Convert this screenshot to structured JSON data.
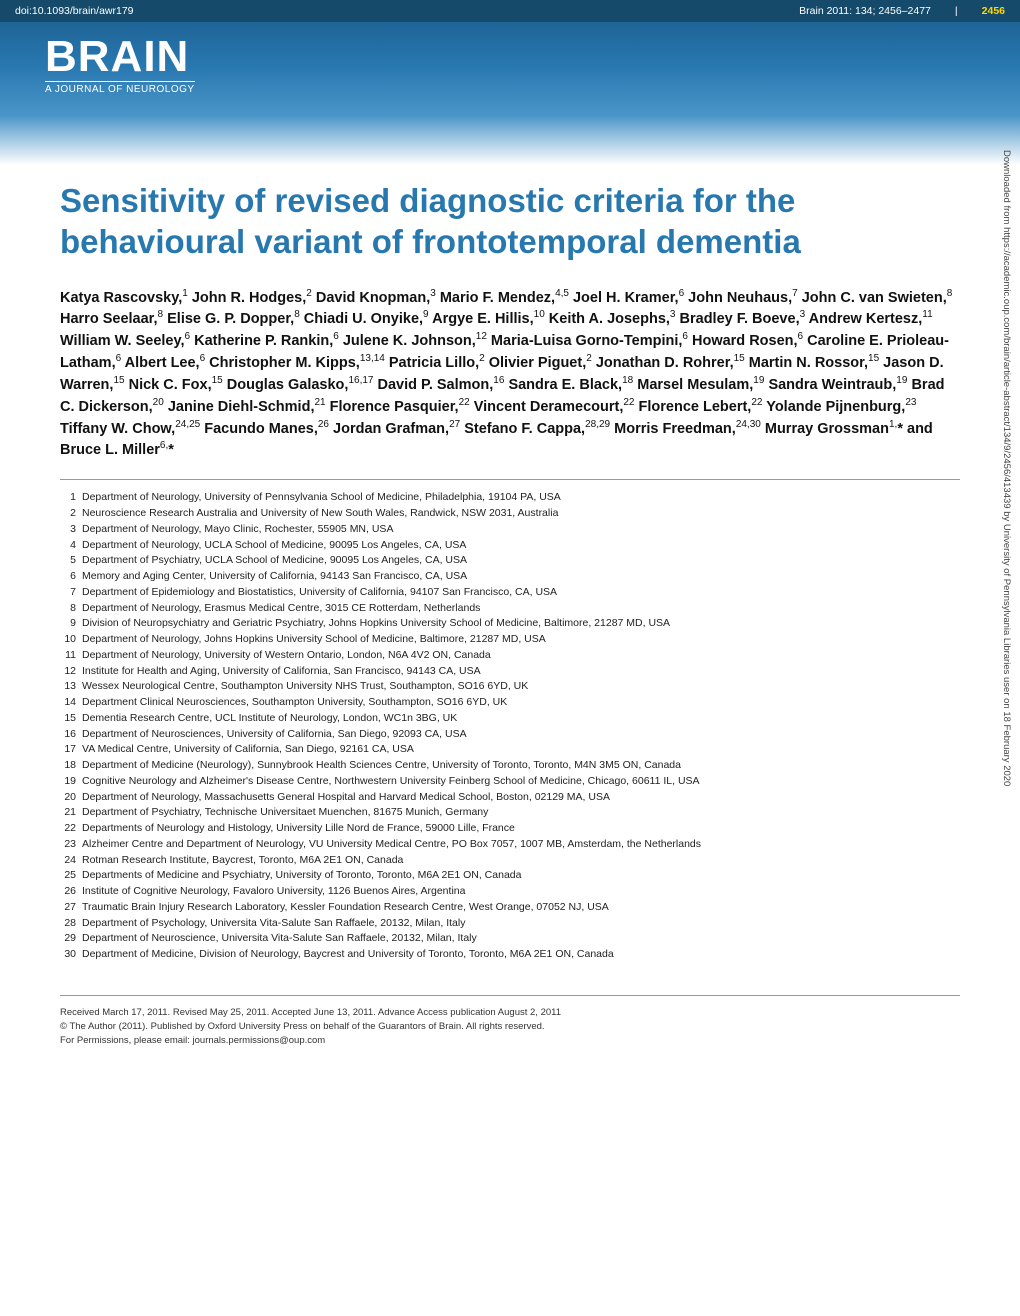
{
  "header": {
    "doi": "doi:10.1093/brain/awr179",
    "citation": "Brain 2011: 134; 2456–2477",
    "page_number": "2456",
    "journal_name": "BRAIN",
    "journal_subtitle": "A JOURNAL OF NEUROLOGY"
  },
  "title": "Sensitivity of revised diagnostic criteria for the behavioural variant of frontotemporal dementia",
  "authors_html": "Katya Rascovsky,<sup>1</sup> John R. Hodges,<sup>2</sup> David Knopman,<sup>3</sup> Mario F. Mendez,<sup>4,5</sup> Joel H. Kramer,<sup>6</sup> John Neuhaus,<sup>7</sup> John C. van Swieten,<sup>8</sup> Harro Seelaar,<sup>8</sup> Elise G. P. Dopper,<sup>8</sup> Chiadi U. Onyike,<sup>9</sup> Argye E. Hillis,<sup>10</sup> Keith A. Josephs,<sup>3</sup> Bradley F. Boeve,<sup>3</sup> Andrew Kertesz,<sup>11</sup> William W. Seeley,<sup>6</sup> Katherine P. Rankin,<sup>6</sup> Julene K. Johnson,<sup>12</sup> Maria-Luisa Gorno-Tempini,<sup>6</sup> Howard Rosen,<sup>6</sup> Caroline E. Prioleau-Latham,<sup>6</sup> Albert Lee,<sup>6</sup> Christopher M. Kipps,<sup>13,14</sup> Patricia Lillo,<sup>2</sup> Olivier Piguet,<sup>2</sup> Jonathan D. Rohrer,<sup>15</sup> Martin N. Rossor,<sup>15</sup> Jason D. Warren,<sup>15</sup> Nick C. Fox,<sup>15</sup> Douglas Galasko,<sup>16,17</sup> David P. Salmon,<sup>16</sup> Sandra E. Black,<sup>18</sup> Marsel Mesulam,<sup>19</sup> Sandra Weintraub,<sup>19</sup> Brad C. Dickerson,<sup>20</sup> Janine Diehl-Schmid,<sup>21</sup> Florence Pasquier,<sup>22</sup> Vincent Deramecourt,<sup>22</sup> Florence Lebert,<sup>22</sup> Yolande Pijnenburg,<sup>23</sup> Tiffany W. Chow,<sup>24,25</sup> Facundo Manes,<sup>26</sup> Jordan Grafman,<sup>27</sup> Stefano F. Cappa,<sup>28,29</sup> Morris Freedman,<sup>24,30</sup> Murray Grossman<sup>1,</sup>* and Bruce L. Miller<sup>6,</sup>*",
  "affiliations": [
    {
      "n": "1",
      "text": "Department of Neurology, University of Pennsylvania School of Medicine, Philadelphia, 19104 PA, USA"
    },
    {
      "n": "2",
      "text": "Neuroscience Research Australia and University of New South Wales, Randwick, NSW 2031, Australia"
    },
    {
      "n": "3",
      "text": "Department of Neurology, Mayo Clinic, Rochester, 55905 MN, USA"
    },
    {
      "n": "4",
      "text": "Department of Neurology, UCLA School of Medicine, 90095 Los Angeles, CA, USA"
    },
    {
      "n": "5",
      "text": "Department of Psychiatry, UCLA School of Medicine, 90095 Los Angeles, CA, USA"
    },
    {
      "n": "6",
      "text": "Memory and Aging Center, University of California, 94143 San Francisco, CA, USA"
    },
    {
      "n": "7",
      "text": "Department of Epidemiology and Biostatistics, University of California, 94107 San Francisco, CA, USA"
    },
    {
      "n": "8",
      "text": "Department of Neurology, Erasmus Medical Centre, 3015 CE Rotterdam, Netherlands"
    },
    {
      "n": "9",
      "text": "Division of Neuropsychiatry and Geriatric Psychiatry, Johns Hopkins University School of Medicine, Baltimore, 21287 MD, USA"
    },
    {
      "n": "10",
      "text": "Department of Neurology, Johns Hopkins University School of Medicine, Baltimore, 21287 MD, USA"
    },
    {
      "n": "11",
      "text": "Department of Neurology, University of Western Ontario, London, N6A 4V2 ON, Canada"
    },
    {
      "n": "12",
      "text": "Institute for Health and Aging, University of California, San Francisco, 94143 CA, USA"
    },
    {
      "n": "13",
      "text": "Wessex Neurological Centre, Southampton University NHS Trust, Southampton, SO16 6YD, UK"
    },
    {
      "n": "14",
      "text": "Department Clinical Neurosciences, Southampton University, Southampton, SO16 6YD, UK"
    },
    {
      "n": "15",
      "text": "Dementia Research Centre, UCL Institute of Neurology, London, WC1n 3BG, UK"
    },
    {
      "n": "16",
      "text": "Department of Neurosciences, University of California, San Diego, 92093 CA, USA"
    },
    {
      "n": "17",
      "text": "VA Medical Centre, University of California, San Diego, 92161 CA, USA"
    },
    {
      "n": "18",
      "text": "Department of Medicine (Neurology), Sunnybrook Health Sciences Centre, University of Toronto, Toronto, M4N 3M5 ON, Canada"
    },
    {
      "n": "19",
      "text": "Cognitive Neurology and Alzheimer's Disease Centre, Northwestern University Feinberg School of Medicine, Chicago, 60611 IL, USA"
    },
    {
      "n": "20",
      "text": "Department of Neurology, Massachusetts General Hospital and Harvard Medical School, Boston, 02129 MA, USA"
    },
    {
      "n": "21",
      "text": "Department of Psychiatry, Technische Universitaet Muenchen, 81675 Munich, Germany"
    },
    {
      "n": "22",
      "text": "Departments of Neurology and Histology, University Lille Nord de France, 59000 Lille, France"
    },
    {
      "n": "23",
      "text": "Alzheimer Centre and Department of Neurology, VU University Medical Centre, PO Box 7057, 1007 MB, Amsterdam, the Netherlands"
    },
    {
      "n": "24",
      "text": "Rotman Research Institute, Baycrest, Toronto, M6A 2E1 ON, Canada"
    },
    {
      "n": "25",
      "text": "Departments of Medicine and Psychiatry, University of Toronto, Toronto, M6A 2E1 ON, Canada"
    },
    {
      "n": "26",
      "text": "Institute of Cognitive Neurology, Favaloro University, 1126 Buenos Aires, Argentina"
    },
    {
      "n": "27",
      "text": "Traumatic Brain Injury Research Laboratory, Kessler Foundation Research Centre, West Orange, 07052 NJ, USA"
    },
    {
      "n": "28",
      "text": "Department of Psychology, Universita Vita-Salute San Raffaele, 20132, Milan, Italy"
    },
    {
      "n": "29",
      "text": "Department of Neuroscience, Universita Vita-Salute San Raffaele, 20132, Milan, Italy"
    },
    {
      "n": "30",
      "text": "Department of Medicine, Division of Neurology, Baycrest and University of Toronto, Toronto, M6A 2E1 ON, Canada"
    }
  ],
  "footer": {
    "received": "Received March 17, 2011. Revised May 25, 2011. Accepted June 13, 2011. Advance Access publication August 2, 2011",
    "copyright": "© The Author (2011). Published by Oxford University Press on behalf of the Guarantors of Brain. All rights reserved.",
    "permissions": "For Permissions, please email: journals.permissions@oup.com"
  },
  "sidebar": "Downloaded from https://academic.oup.com/brain/article-abstract/134/9/2456/413439 by University of Pennsylvania Libraries user on 18 February 2020",
  "colors": {
    "header_gradient_top": "#1a5a8a",
    "header_gradient_mid": "#2878b0",
    "title_color": "#2878b0",
    "page_num_color": "#ffd700",
    "doi_bar_bg": "#164a6a",
    "text_color": "#111111",
    "divider_color": "#999999"
  },
  "typography": {
    "title_fontsize": 33,
    "authors_fontsize": 14.5,
    "affiliations_fontsize": 10.5,
    "footer_fontsize": 9.5,
    "logo_fontsize": 44
  }
}
